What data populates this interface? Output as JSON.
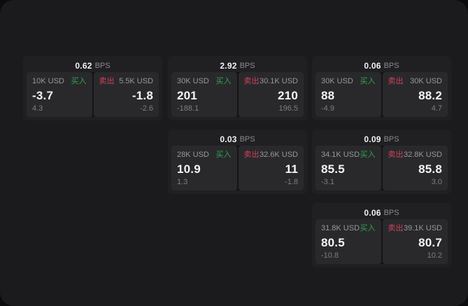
{
  "colors": {
    "page_background": "#0c0c0e",
    "window_background": "#1b1b1d",
    "card_background": "#202023",
    "tile_background": "#29292c",
    "buy_green": "#2fa351",
    "sell_red": "#cc4458",
    "text_primary": "#f5f5f7",
    "text_secondary": "#97979d"
  },
  "cards": [
    {
      "bps": "0.62",
      "bps_unit": "BPS",
      "buy": {
        "amount": "10K USD",
        "label": "买入",
        "value": "-3.7",
        "delta": "4.3"
      },
      "sell": {
        "label": "卖出",
        "amount": "5.5K USD",
        "value": "-1.8",
        "delta": "-2.6"
      }
    },
    {
      "bps": "2.92",
      "bps_unit": "BPS",
      "buy": {
        "amount": "30K USD",
        "label": "买入",
        "value": "201",
        "delta": "-188.1"
      },
      "sell": {
        "label": "卖出",
        "amount": "30.1K USD",
        "value": "210",
        "delta": "196.5"
      }
    },
    {
      "bps": "0.06",
      "bps_unit": "BPS",
      "buy": {
        "amount": "30K USD",
        "label": "买入",
        "value": "88",
        "delta": "-4.9"
      },
      "sell": {
        "label": "卖出",
        "amount": "30K USD",
        "value": "88.2",
        "delta": "4.7"
      }
    },
    {
      "bps": "0.03",
      "bps_unit": "BPS",
      "buy": {
        "amount": "28K USD",
        "label": "买入",
        "value": "10.9",
        "delta": "1.3"
      },
      "sell": {
        "label": "卖出",
        "amount": "32.6K USD",
        "value": "11",
        "delta": "-1.8"
      }
    },
    {
      "bps": "0.09",
      "bps_unit": "BPS",
      "buy": {
        "amount": "34.1K USD",
        "label": "买入",
        "value": "85.5",
        "delta": "-3.1"
      },
      "sell": {
        "label": "卖出",
        "amount": "32.8K USD",
        "value": "85.8",
        "delta": "3.0"
      }
    },
    {
      "bps": "0.06",
      "bps_unit": "BPS",
      "buy": {
        "amount": "31.8K USD",
        "label": "买入",
        "value": "80.5",
        "delta": "-10.8"
      },
      "sell": {
        "label": "卖出",
        "amount": "39.1K USD",
        "value": "80.7",
        "delta": "10.2"
      }
    }
  ]
}
